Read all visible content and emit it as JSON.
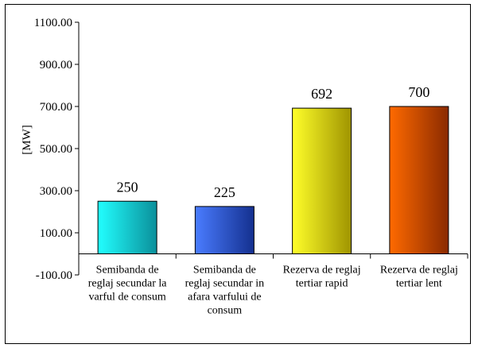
{
  "chart_data": {
    "type": "bar",
    "title": "",
    "xlabel": "",
    "ylabel": "[MW]",
    "ylim": [
      -100,
      1100
    ],
    "yticks": [
      -100,
      100,
      300,
      500,
      700,
      900,
      1100
    ],
    "ytick_labels": [
      "-100.00",
      "100.00",
      "300.00",
      "500.00",
      "700.00",
      "900.00",
      "1100.00"
    ],
    "grid": false,
    "legend": "none",
    "categories": [
      [
        "Semibanda de",
        "reglaj secundar la",
        "varful de consum"
      ],
      [
        "Semibanda de",
        "reglaj secundar in",
        "afara varfului de",
        "consum"
      ],
      [
        "Rezerva de reglaj",
        "tertiar rapid"
      ],
      [
        "Rezerva de reglaj",
        "tertiar lent"
      ]
    ],
    "values": [
      250,
      225,
      692,
      700
    ],
    "data_labels": [
      "250",
      "225",
      "692",
      "700"
    ],
    "bar_colors": [
      [
        "#22ffff",
        "#0a8f9a"
      ],
      [
        "#4a7cff",
        "#14308f"
      ],
      [
        "#ffff2a",
        "#9f9400"
      ],
      [
        "#ff6a00",
        "#8a2a00"
      ]
    ]
  }
}
